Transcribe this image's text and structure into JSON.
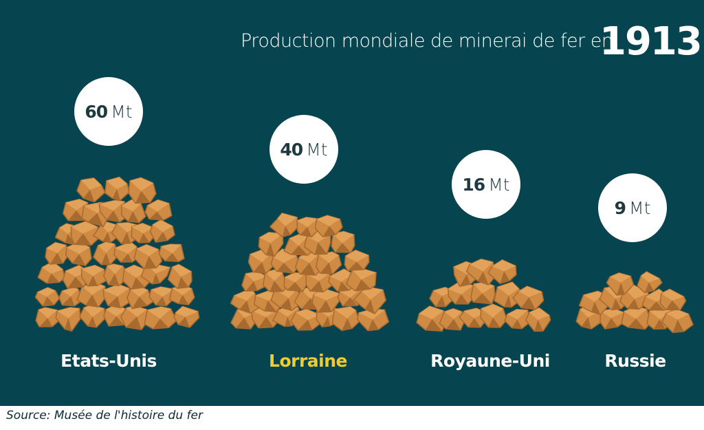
{
  "title": {
    "text": "Production mondiale de minerai de fer en",
    "year": "1913"
  },
  "colors": {
    "background": "#064550",
    "ore_light": "#e3a259",
    "ore_mid": "#cf8a44",
    "ore_dark": "#a86b2f",
    "label_default": "#ffffff",
    "label_highlight": "#f2cc2f"
  },
  "chart_data": {
    "type": "bar",
    "title": "Production mondiale de minerai de fer en 1913",
    "categories": [
      "Etats-Unis",
      "Lorraine",
      "Royaune-Uni",
      "Russie"
    ],
    "values": [
      60,
      40,
      16,
      9
    ],
    "unit": "Mt",
    "value_labels": [
      "60",
      "40",
      "16",
      "9"
    ],
    "highlight": "Lorraine"
  },
  "source": "Source: Musée de l'histoire du fer"
}
